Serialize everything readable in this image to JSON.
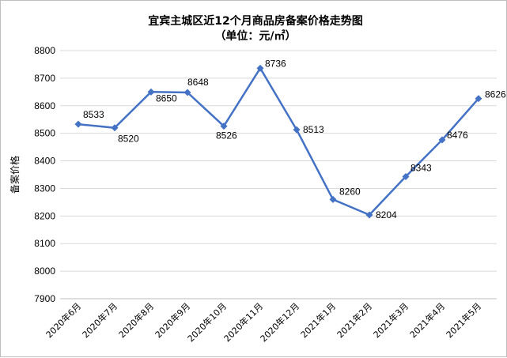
{
  "chart_data": {
    "type": "line",
    "title": "宜宾主城区近12个月商品房备案价格走势图",
    "subtitle": "（单位：元/㎡）",
    "ylabel": "备案价格",
    "xlabel": "",
    "ylim": [
      7900,
      8800
    ],
    "ytick_step": 100,
    "grid": true,
    "legend": "none",
    "line_color": "#4472c4",
    "categories": [
      "2020年6月",
      "2020年7月",
      "2020年8月",
      "2020年9月",
      "2020年10月",
      "2020年11月",
      "2020年12月",
      "2021年1月",
      "2021年2月",
      "2021年3月",
      "2021年4月",
      "2021年5月"
    ],
    "values": [
      8533,
      8520,
      8650,
      8648,
      8526,
      8736,
      8513,
      8260,
      8204,
      8343,
      8476,
      8626
    ]
  }
}
